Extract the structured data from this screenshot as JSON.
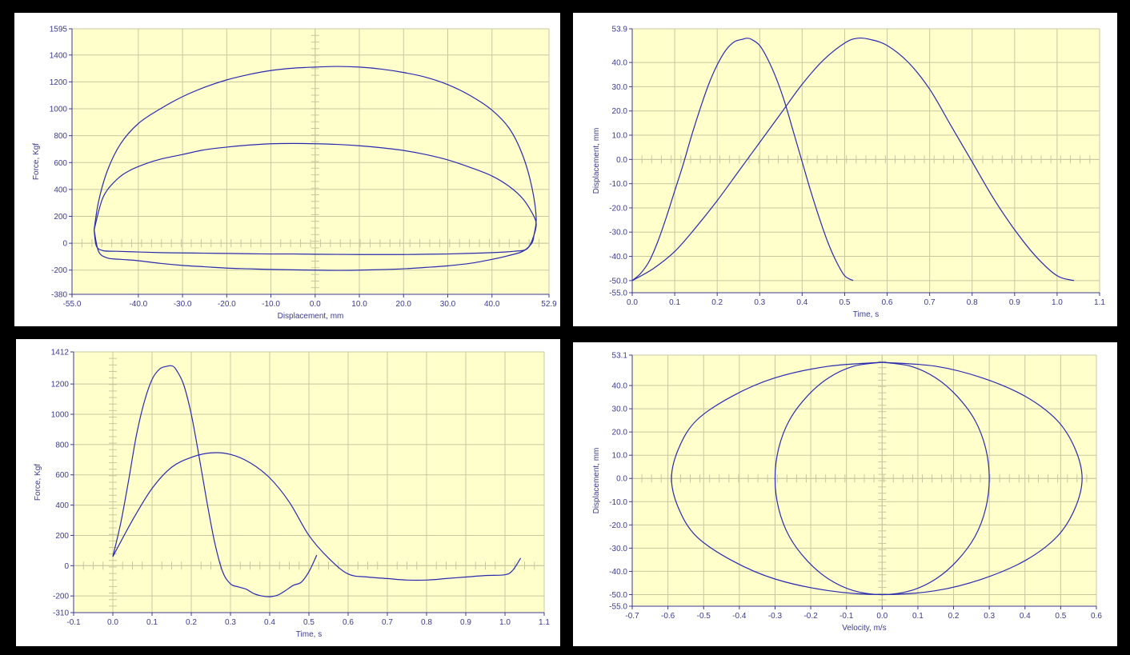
{
  "colors": {
    "background": "#000000",
    "panel_frame": "#ffffff",
    "plot_area": "#ffffcc",
    "grid": "#c8c8a0",
    "axis": "#3b3b8f",
    "curve": "#2a2ab0"
  },
  "chart_data": [
    {
      "id": "force_displacement",
      "type": "line",
      "xlabel": "Displacement, mm",
      "ylabel": "Force, Kgf",
      "xlim": [
        -55.0,
        52.9
      ],
      "ylim": [
        -380,
        1595
      ],
      "x_ticks": [
        -55.0,
        -40.0,
        -30.0,
        -20.0,
        -10.0,
        0.0,
        10.0,
        20.0,
        30.0,
        40.0,
        52.9
      ],
      "x_tick_labels": [
        "-55.0",
        "-40.0",
        "-30.0",
        "-20.0",
        "-10.0",
        "0.0",
        "10.0",
        "20.0",
        "30.0",
        "40.0",
        "52.9"
      ],
      "y_ticks": [
        -380,
        -200,
        0,
        200,
        400,
        600,
        800,
        1000,
        1200,
        1400,
        1595
      ],
      "y_tick_labels": [
        "-380",
        "-200",
        "0",
        "200",
        "400",
        "600",
        "800",
        "1000",
        "1200",
        "1400",
        "1595"
      ],
      "grid": true,
      "series": [
        {
          "x": [
            -50,
            -49,
            -47,
            -44,
            -40,
            -35,
            -30,
            -25,
            -20,
            -15,
            -10,
            -5,
            0,
            5,
            10,
            15,
            20,
            25,
            30,
            35,
            40,
            44,
            47,
            49,
            50,
            49.5,
            49,
            47,
            44,
            40,
            35,
            30,
            25,
            20,
            15,
            10,
            5,
            0,
            -5,
            -10,
            -15,
            -20,
            -25,
            -30,
            -35,
            -40,
            -44,
            -47,
            -49,
            -50
          ],
          "y": [
            100,
            310,
            540,
            740,
            890,
            1000,
            1090,
            1160,
            1215,
            1255,
            1285,
            1302,
            1310,
            1315,
            1310,
            1295,
            1270,
            1235,
            1180,
            1100,
            990,
            850,
            650,
            420,
            190,
            60,
            0,
            -60,
            -90,
            -120,
            -150,
            -168,
            -180,
            -190,
            -196,
            -200,
            -202,
            -200,
            -198,
            -195,
            -190,
            -185,
            -175,
            -165,
            -150,
            -130,
            -120,
            -110,
            -60,
            100
          ]
        },
        {
          "x": [
            -50,
            -48,
            -45,
            -42,
            -38,
            -35,
            -30,
            -25,
            -20,
            -15,
            -10,
            -5,
            0,
            5,
            10,
            15,
            20,
            25,
            30,
            35,
            40,
            44,
            47,
            49,
            50,
            49.5,
            48,
            45,
            40,
            35,
            30,
            25,
            20,
            15,
            10,
            5,
            0,
            -5,
            -10,
            -15,
            -20,
            -25,
            -30,
            -35,
            -40,
            -45,
            -48,
            -49.5,
            -50
          ],
          "y": [
            100,
            340,
            470,
            540,
            595,
            625,
            660,
            695,
            715,
            730,
            740,
            742,
            740,
            735,
            725,
            710,
            690,
            660,
            620,
            565,
            500,
            420,
            330,
            230,
            150,
            60,
            -40,
            -60,
            -70,
            -75,
            -80,
            -82,
            -84,
            -84,
            -84,
            -83,
            -82,
            -80,
            -80,
            -78,
            -76,
            -74,
            -72,
            -70,
            -65,
            -60,
            -55,
            -20,
            100
          ]
        }
      ]
    },
    {
      "id": "displacement_time",
      "type": "line",
      "xlabel": "Time, s",
      "ylabel": "Displacement, mm",
      "xlim": [
        0.0,
        1.1
      ],
      "ylim": [
        -55.0,
        53.9
      ],
      "x_ticks": [
        0.0,
        0.1,
        0.2,
        0.3,
        0.4,
        0.5,
        0.6,
        0.7,
        0.8,
        0.9,
        1.0,
        1.1
      ],
      "x_tick_labels": [
        "0.0",
        "0.1",
        "0.2",
        "0.3",
        "0.4",
        "0.5",
        "0.6",
        "0.7",
        "0.8",
        "0.9",
        "1.0",
        "1.1"
      ],
      "y_ticks": [
        -55.0,
        -50.0,
        -40.0,
        -30.0,
        -20.0,
        -10.0,
        0.0,
        10.0,
        20.0,
        30.0,
        40.0,
        53.9
      ],
      "y_tick_labels": [
        "-55.0",
        "-50.0",
        "-40.0",
        "-30.0",
        "-20.0",
        "-10.0",
        "0.0",
        "10.0",
        "20.0",
        "30.0",
        "40.0",
        "53.9"
      ],
      "grid": true,
      "series": [
        {
          "x": [
            0.0,
            0.02,
            0.04,
            0.06,
            0.08,
            0.1,
            0.12,
            0.14,
            0.16,
            0.18,
            0.2,
            0.22,
            0.24,
            0.26,
            0.27,
            0.28,
            0.3,
            0.32,
            0.34,
            0.36,
            0.38,
            0.4,
            0.42,
            0.44,
            0.46,
            0.48,
            0.5,
            0.52
          ],
          "y": [
            -50,
            -47,
            -42,
            -34,
            -24,
            -13,
            -2,
            10,
            21,
            31,
            39,
            45,
            48.5,
            49.6,
            50,
            49.6,
            47,
            41,
            33,
            23,
            11,
            -1,
            -13,
            -24,
            -34,
            -42,
            -48,
            -50
          ]
        },
        {
          "x": [
            0.0,
            0.05,
            0.1,
            0.15,
            0.2,
            0.25,
            0.3,
            0.35,
            0.4,
            0.45,
            0.5,
            0.53,
            0.56,
            0.6,
            0.65,
            0.7,
            0.75,
            0.8,
            0.85,
            0.9,
            0.95,
            1.0,
            1.04
          ],
          "y": [
            -50,
            -45,
            -38,
            -28,
            -17,
            -5,
            7,
            19,
            31,
            41,
            48,
            50,
            49.5,
            47,
            40,
            29,
            14,
            -1,
            -16,
            -29,
            -40,
            -48,
            -50
          ]
        }
      ]
    },
    {
      "id": "force_time",
      "type": "line",
      "xlabel": "Time, s",
      "ylabel": "Force, Kgf",
      "xlim": [
        -0.1,
        1.1
      ],
      "ylim": [
        -310,
        1412
      ],
      "x_ticks": [
        -0.1,
        0.0,
        0.1,
        0.2,
        0.3,
        0.4,
        0.5,
        0.6,
        0.7,
        0.8,
        0.9,
        1.0,
        1.1
      ],
      "x_tick_labels": [
        "-0.1",
        "0.0",
        "0.1",
        "0.2",
        "0.3",
        "0.4",
        "0.5",
        "0.6",
        "0.7",
        "0.8",
        "0.9",
        "1.0",
        "1.1"
      ],
      "y_ticks": [
        -310,
        -200,
        0,
        200,
        400,
        600,
        800,
        1000,
        1200,
        1412
      ],
      "y_tick_labels": [
        "-310",
        "-200",
        "0",
        "200",
        "400",
        "600",
        "800",
        "1000",
        "1200",
        "1412"
      ],
      "grid": true,
      "series": [
        {
          "x": [
            0.0,
            0.02,
            0.04,
            0.06,
            0.08,
            0.1,
            0.12,
            0.14,
            0.15,
            0.16,
            0.18,
            0.2,
            0.22,
            0.24,
            0.26,
            0.28,
            0.3,
            0.32,
            0.34,
            0.36,
            0.38,
            0.4,
            0.42,
            0.44,
            0.46,
            0.48,
            0.5,
            0.52
          ],
          "y": [
            60,
            280,
            560,
            860,
            1080,
            1230,
            1300,
            1318,
            1320,
            1300,
            1200,
            1000,
            720,
            420,
            150,
            -40,
            -120,
            -140,
            -155,
            -185,
            -200,
            -205,
            -195,
            -165,
            -130,
            -110,
            -40,
            70
          ]
        },
        {
          "x": [
            0.0,
            0.05,
            0.1,
            0.15,
            0.2,
            0.25,
            0.3,
            0.35,
            0.4,
            0.45,
            0.5,
            0.55,
            0.6,
            0.65,
            0.7,
            0.75,
            0.8,
            0.85,
            0.9,
            0.95,
            1.0,
            1.02,
            1.04
          ],
          "y": [
            60,
            300,
            510,
            650,
            715,
            745,
            735,
            680,
            580,
            420,
            200,
            50,
            -55,
            -75,
            -85,
            -95,
            -95,
            -85,
            -75,
            -65,
            -60,
            -30,
            50
          ]
        }
      ]
    },
    {
      "id": "displacement_velocity",
      "type": "line",
      "xlabel": "Velocity, m/s",
      "ylabel": "Displacement, mm",
      "xlim": [
        -0.7,
        0.6
      ],
      "ylim": [
        -55.0,
        53.1
      ],
      "x_ticks": [
        -0.7,
        -0.6,
        -0.5,
        -0.4,
        -0.3,
        -0.2,
        -0.1,
        0.0,
        0.1,
        0.2,
        0.3,
        0.4,
        0.5,
        0.6
      ],
      "x_tick_labels": [
        "-0.7",
        "-0.6",
        "-0.5",
        "-0.4",
        "-0.3",
        "-0.2",
        "-0.1",
        "0.0",
        "0.1",
        "0.2",
        "0.3",
        "0.4",
        "0.5",
        "0.6"
      ],
      "y_ticks": [
        -55.0,
        -50.0,
        -40.0,
        -30.0,
        -20.0,
        -10.0,
        0.0,
        10.0,
        20.0,
        30.0,
        40.0,
        53.1
      ],
      "y_tick_labels": [
        "-55.0",
        "-50.0",
        "-40.0",
        "-30.0",
        "-20.0",
        "-10.0",
        "0.0",
        "10.0",
        "20.0",
        "30.0",
        "40.0",
        "53.1"
      ],
      "grid": true,
      "series": [
        {
          "x": [
            0.0,
            0.08,
            0.15,
            0.21,
            0.26,
            0.29,
            0.3,
            0.29,
            0.26,
            0.21,
            0.15,
            0.08,
            0.0,
            -0.08,
            -0.15,
            -0.21,
            -0.26,
            -0.29,
            -0.3,
            -0.29,
            -0.26,
            -0.21,
            -0.15,
            -0.08,
            0.0
          ],
          "y": [
            50,
            48.3,
            43.3,
            35.4,
            25,
            12.9,
            0,
            -12.9,
            -25,
            -35.4,
            -43.3,
            -48.3,
            -50,
            -48.3,
            -43.3,
            -35.4,
            -25,
            -12.9,
            0,
            12.9,
            25,
            35.4,
            43.3,
            48.3,
            50
          ]
        },
        {
          "x": [
            0.0,
            0.15,
            0.28,
            0.4,
            0.49,
            0.54,
            0.56,
            0.54,
            0.49,
            0.4,
            0.28,
            0.15,
            0.0,
            -0.15,
            -0.3,
            -0.42,
            -0.52,
            -0.57,
            -0.59,
            -0.57,
            -0.52,
            -0.42,
            -0.3,
            -0.15,
            0.0
          ],
          "y": [
            50,
            48.3,
            43.3,
            35.4,
            25,
            12.9,
            0,
            -12.9,
            -25,
            -35.4,
            -43.3,
            -48.3,
            -50,
            -48.3,
            -43.3,
            -35.4,
            -25,
            -12.9,
            0,
            12.9,
            25,
            35.4,
            43.3,
            48.3,
            50
          ]
        }
      ]
    }
  ]
}
